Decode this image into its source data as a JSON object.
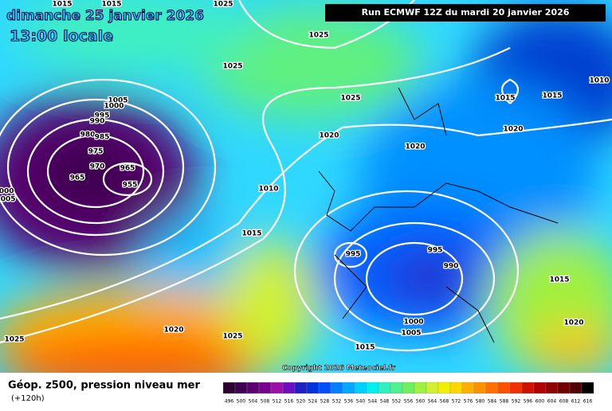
{
  "header": {
    "date": "dimanche 25 janvier 2026",
    "time": "13:00 locale",
    "run": "Run ECMWF 12Z du mardi 20 janvier 2026"
  },
  "isobar_labels": [
    1015,
    1015,
    1025,
    1025,
    1025,
    1025,
    1005,
    1000,
    995,
    990,
    980,
    985,
    975,
    970,
    965,
    965,
    955,
    1000,
    1005,
    1020,
    1020,
    1010,
    1015,
    995,
    995,
    990,
    1000,
    1005,
    1015,
    1020,
    1025,
    1025,
    1015,
    1015,
    1010,
    1020,
    1015,
    1020
  ],
  "copyright": "Copyright 2026 Meteociel.fr",
  "legend": {
    "title": "Géop. z500, pression niveau mer",
    "lead": "(+120h)",
    "scale": [
      {
        "value": 496,
        "color": "#2a0030"
      },
      {
        "value": 500,
        "color": "#3d0050"
      },
      {
        "value": 504,
        "color": "#5a0070"
      },
      {
        "value": 508,
        "color": "#7a0090"
      },
      {
        "value": 512,
        "color": "#9a10a8"
      },
      {
        "value": 516,
        "color": "#6a10c0"
      },
      {
        "value": 520,
        "color": "#2020c0"
      },
      {
        "value": 524,
        "color": "#0030e0"
      },
      {
        "value": 528,
        "color": "#0050ff"
      },
      {
        "value": 532,
        "color": "#0080ff"
      },
      {
        "value": 536,
        "color": "#00a8ff"
      },
      {
        "value": 540,
        "color": "#00d0ff"
      },
      {
        "value": 544,
        "color": "#00f0f0"
      },
      {
        "value": 548,
        "color": "#30f0c0"
      },
      {
        "value": 552,
        "color": "#50f090"
      },
      {
        "value": 556,
        "color": "#70f060"
      },
      {
        "value": 560,
        "color": "#a0f040"
      },
      {
        "value": 564,
        "color": "#d0f030"
      },
      {
        "value": 568,
        "color": "#f0f000"
      },
      {
        "value": 572,
        "color": "#ffd800"
      },
      {
        "value": 576,
        "color": "#ffb000"
      },
      {
        "value": 580,
        "color": "#ff9000"
      },
      {
        "value": 584,
        "color": "#ff7000"
      },
      {
        "value": 588,
        "color": "#ff5000"
      },
      {
        "value": 592,
        "color": "#f03000"
      },
      {
        "value": 596,
        "color": "#d01000"
      },
      {
        "value": 600,
        "color": "#b00000"
      },
      {
        "value": 604,
        "color": "#900000"
      },
      {
        "value": 608,
        "color": "#700000"
      },
      {
        "value": 612,
        "color": "#500000"
      },
      {
        "value": 616,
        "color": "#000000"
      }
    ]
  }
}
